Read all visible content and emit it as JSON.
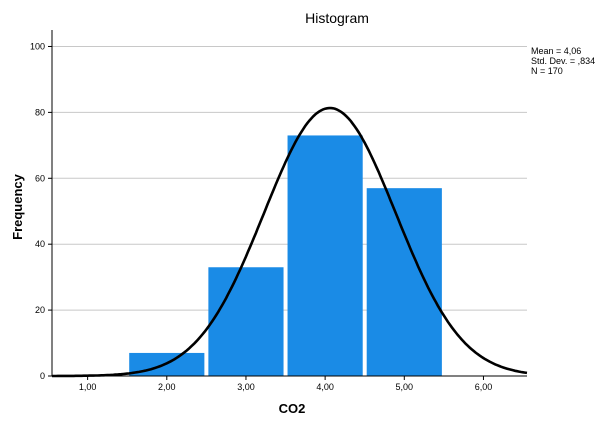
{
  "chart_data": {
    "type": "bar",
    "title": "Histogram",
    "xlabel": "CO2",
    "ylabel": "Frequency",
    "bins": [
      {
        "from": 1.5,
        "to": 2.5,
        "count": 7
      },
      {
        "from": 2.5,
        "to": 3.5,
        "count": 33
      },
      {
        "from": 3.5,
        "to": 4.5,
        "count": 73
      },
      {
        "from": 4.5,
        "to": 5.5,
        "count": 57
      }
    ],
    "xlim": [
      0.55,
      6.55
    ],
    "ylim": [
      0,
      105
    ],
    "xticks": [
      {
        "value": 1,
        "label": "1,00"
      },
      {
        "value": 2,
        "label": "2,00"
      },
      {
        "value": 3,
        "label": "3,00"
      },
      {
        "value": 4,
        "label": "4,00"
      },
      {
        "value": 5,
        "label": "5,00"
      },
      {
        "value": 6,
        "label": "6,00"
      }
    ],
    "yticks": [
      {
        "value": 0,
        "label": "0"
      },
      {
        "value": 20,
        "label": "20"
      },
      {
        "value": 40,
        "label": "40"
      },
      {
        "value": 60,
        "label": "60"
      },
      {
        "value": 80,
        "label": "80"
      },
      {
        "value": 100,
        "label": "100"
      }
    ],
    "grid": true,
    "normal_curve": {
      "mean": 4.06,
      "sd": 0.834,
      "n": 170,
      "bin_width": 1
    },
    "stats_text": [
      "Mean = 4,06",
      "Std. Dev. = ,834",
      "N = 170"
    ],
    "colors": {
      "bar": "#1a8be6",
      "curve": "#000000",
      "grid": "#c8c8c8",
      "axis": "#000000"
    }
  }
}
